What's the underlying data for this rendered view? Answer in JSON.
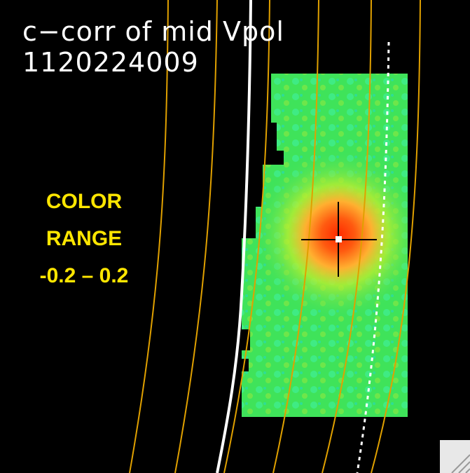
{
  "plot": {
    "title": "c−corr of mid Vpol",
    "event_id": "1120224009"
  },
  "annotation": {
    "lines": [
      "COLOR",
      "RANGE",
      "-0.2 – 0.2"
    ]
  }
}
